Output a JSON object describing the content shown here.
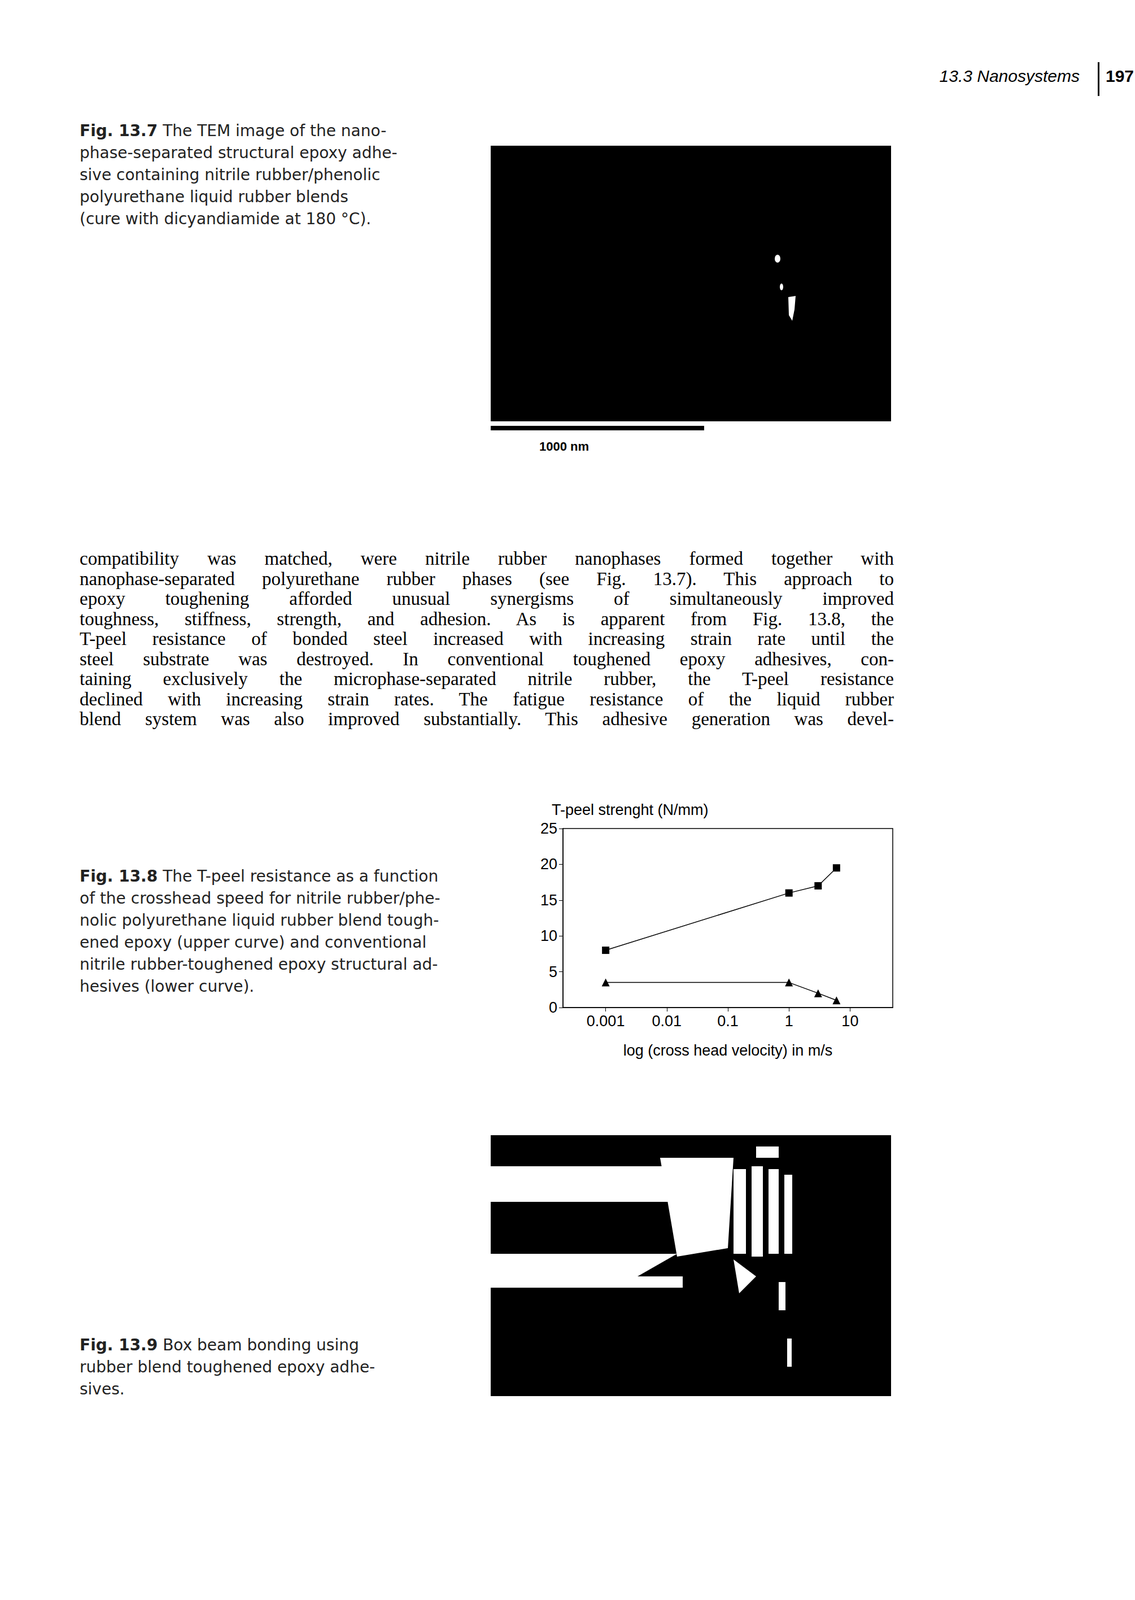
{
  "header": {
    "section": "13.3 Nanosystems",
    "page": "197"
  },
  "figures": [
    {
      "label": "Fig. 13.7",
      "caption_lines": [
        "The TEM image of the nano-",
        "phase-separated structural epoxy adhe-",
        "sive containing nitrile rubber/phenolic",
        "polyurethane liquid rubber blends",
        "(cure with dicyandiamide at 180 °C)."
      ],
      "scale_bar": "1000 nm"
    },
    {
      "label": "Fig. 13.8",
      "caption_lines": [
        "The T-peel resistance as a function",
        "of the crosshead speed for nitrile rubber/phe-",
        "nolic polyurethane liquid rubber blend tough-",
        "ened epoxy (upper curve) and conventional",
        "nitrile rubber-toughened epoxy structural ad-",
        "hesives (lower curve)."
      ]
    },
    {
      "label": "Fig. 13.9",
      "caption_lines": [
        "Box beam bonding using",
        "rubber blend toughened epoxy adhe-",
        "sives."
      ]
    }
  ],
  "body_lines": [
    "compatibility was matched, were nitrile rubber nanophases formed together with",
    "nanophase-separated polyurethane rubber phases (see Fig. 13.7). This approach to",
    "epoxy toughening afforded unusual synergisms of simultaneously improved",
    "toughness, stiffness, strength, and adhesion. As is apparent from Fig. 13.8, the",
    "T-peel resistance of bonded steel increased with increasing strain rate until the",
    "steel substrate was destroyed. In conventional toughened epoxy adhesives, con-",
    "taining exclusively the microphase-separated nitrile rubber, the T-peel resistance",
    "declined with increasing strain rates. The fatigue resistance of the liquid rubber",
    "blend system was also improved substantially. This adhesive generation was devel-"
  ],
  "chart_data": {
    "type": "line",
    "ylabel": "T-peel strenght (N/mm)",
    "xlabel": "log (cross head velocity) in m/s",
    "log": "x",
    "grid": false,
    "x": [
      0.001,
      1,
      3,
      6
    ],
    "series": [
      {
        "color": "#000000",
        "marker": "square",
        "line_style": "solid",
        "values": [
          8,
          16,
          17,
          19.5
        ]
      },
      {
        "color": "#000000",
        "marker": "triangle",
        "line_style": "solid",
        "values": [
          3.5,
          3.5,
          2,
          1
        ]
      }
    ],
    "xlim": [
      0.0002,
      50
    ],
    "xticks": [
      0.001,
      0.01,
      0.1,
      1,
      10
    ],
    "ylim": [
      0,
      25
    ],
    "yticks": [
      0,
      5,
      10,
      15,
      20,
      25
    ]
  }
}
